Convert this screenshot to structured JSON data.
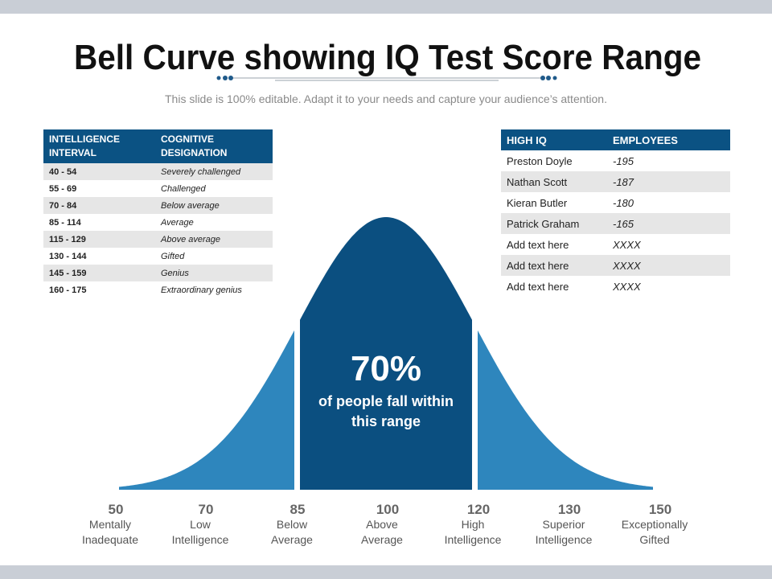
{
  "header": {
    "title": "Bell Curve showing IQ Test Score Range",
    "subtitle": "This slide is 100% editable. Adapt it to your needs and capture your audience’s attention."
  },
  "left_table": {
    "columns": [
      [
        "INTELLIGENCE",
        "INTERVAL"
      ],
      [
        "COGNITIVE",
        "DESIGNATION"
      ]
    ],
    "rows": [
      [
        "40 - 54",
        "Severely challenged"
      ],
      [
        "55 - 69",
        "Challenged"
      ],
      [
        "70 - 84",
        "Below average"
      ],
      [
        "85 - 114",
        "Average"
      ],
      [
        "115 - 129",
        "Above average"
      ],
      [
        "130 - 144",
        "Gifted"
      ],
      [
        "145 - 159",
        "Genius"
      ],
      [
        "160 - 175",
        "Extraordinary genius"
      ]
    ]
  },
  "right_table": {
    "columns": [
      "HIGH IQ",
      "EMPLOYEES"
    ],
    "rows": [
      [
        "Preston Doyle",
        "-195"
      ],
      [
        "Nathan Scott",
        "-187"
      ],
      [
        "Kieran Butler",
        "-180"
      ],
      [
        "Patrick Graham",
        "-165"
      ],
      [
        "Add text here",
        "XXXX"
      ],
      [
        "Add text here",
        "XXXX"
      ],
      [
        "Add text here",
        "XXXX"
      ]
    ]
  },
  "curve": {
    "highlight_value": "70%",
    "highlight_text": [
      "of people fall within",
      "this range"
    ]
  },
  "axis_labels": [
    {
      "value": "50",
      "label": [
        "Mentally",
        "Inadequate"
      ]
    },
    {
      "value": "70",
      "label": [
        "Low",
        "Intelligence"
      ]
    },
    {
      "value": "85",
      "label": [
        "Below",
        "Average"
      ]
    },
    {
      "value": "100",
      "label": [
        "Above",
        "Average"
      ]
    },
    {
      "value": "120",
      "label": [
        "High",
        "Intelligence"
      ]
    },
    {
      "value": "130",
      "label": [
        "Superior",
        "Intelligence"
      ]
    },
    {
      "value": "150",
      "label": [
        "Exceptionally",
        "Gifted"
      ]
    }
  ]
}
